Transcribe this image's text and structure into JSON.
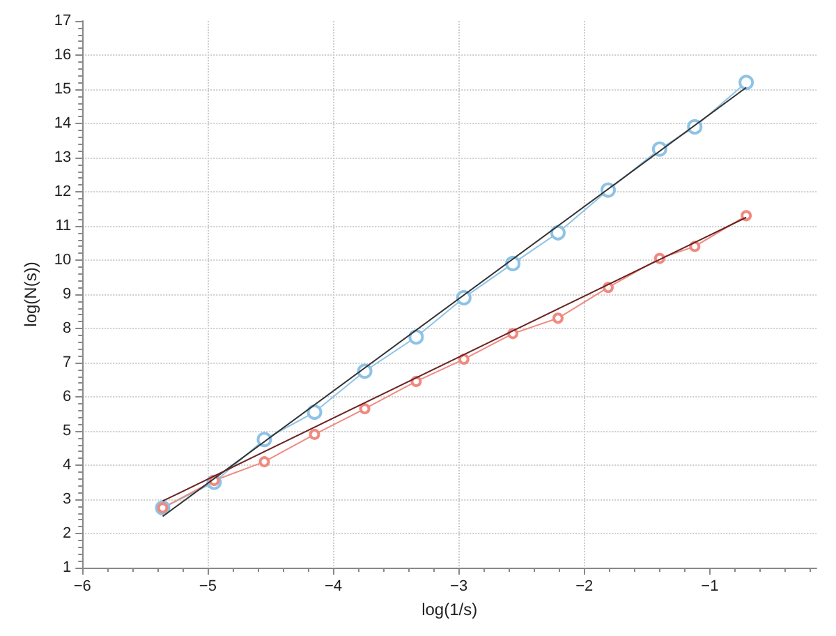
{
  "chart_data": {
    "type": "line",
    "xlabel": "log(1/s)",
    "ylabel": "log(N(s))",
    "xlim": [
      -6,
      -0.15
    ],
    "ylim": [
      1,
      17
    ],
    "xticks": [
      -6,
      -5,
      -4,
      -3,
      -2,
      -1
    ],
    "yticks": [
      1,
      2,
      3,
      4,
      5,
      6,
      7,
      8,
      9,
      10,
      11,
      12,
      13,
      14,
      15,
      16,
      17
    ],
    "grid": true,
    "series": [
      {
        "color": "#8ec3e6",
        "marker": "circle",
        "x": [
          -5.36,
          -4.95,
          -4.55,
          -4.15,
          -3.75,
          -3.34,
          -2.96,
          -2.57,
          -2.21,
          -1.81,
          -1.4,
          -1.12,
          -0.71
        ],
        "values": [
          2.75,
          3.5,
          4.75,
          5.55,
          6.75,
          7.75,
          8.9,
          9.9,
          10.8,
          12.05,
          13.25,
          13.9,
          15.2
        ]
      },
      {
        "color": "#f08a80",
        "marker": "circle",
        "x": [
          -5.36,
          -4.95,
          -4.55,
          -4.15,
          -3.75,
          -3.34,
          -2.96,
          -2.57,
          -2.21,
          -1.81,
          -1.4,
          -1.12,
          -0.71
        ],
        "values": [
          2.75,
          3.55,
          4.1,
          4.9,
          5.65,
          6.45,
          7.1,
          7.85,
          8.3,
          9.2,
          10.05,
          10.4,
          11.3
        ]
      },
      {
        "color": "#333333",
        "marker": "none",
        "x": [
          -5.36,
          -0.71
        ],
        "values": [
          2.5,
          15.05
        ]
      },
      {
        "color": "#6b2222",
        "marker": "none",
        "x": [
          -5.36,
          -0.71
        ],
        "values": [
          2.95,
          11.25
        ]
      }
    ]
  }
}
